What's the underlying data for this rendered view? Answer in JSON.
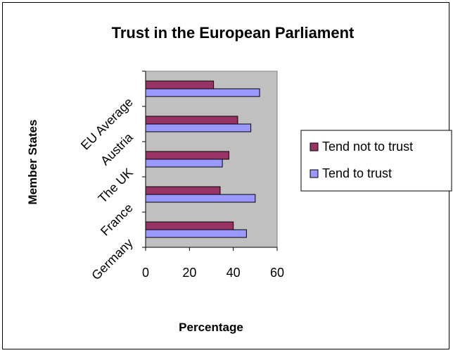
{
  "chart_data": {
    "type": "bar",
    "orientation": "horizontal",
    "title": "Trust in the European Parliament",
    "xlabel": "Percentage",
    "ylabel": "Member States",
    "categories": [
      "Germany",
      "France",
      "The UK",
      "Austria",
      "EU Average"
    ],
    "series": [
      {
        "name": "Tend not to trust",
        "values": [
          40,
          34,
          38,
          42,
          31
        ],
        "color": "#993366"
      },
      {
        "name": "Tend to trust",
        "values": [
          46,
          50,
          35,
          48,
          52
        ],
        "color": "#9999FF"
      }
    ],
    "xlim": [
      0,
      60
    ],
    "xticks": [
      "0",
      "20",
      "40",
      "60"
    ],
    "plot_background": "#C0C0C0",
    "grid": false,
    "legend_position": "right"
  }
}
